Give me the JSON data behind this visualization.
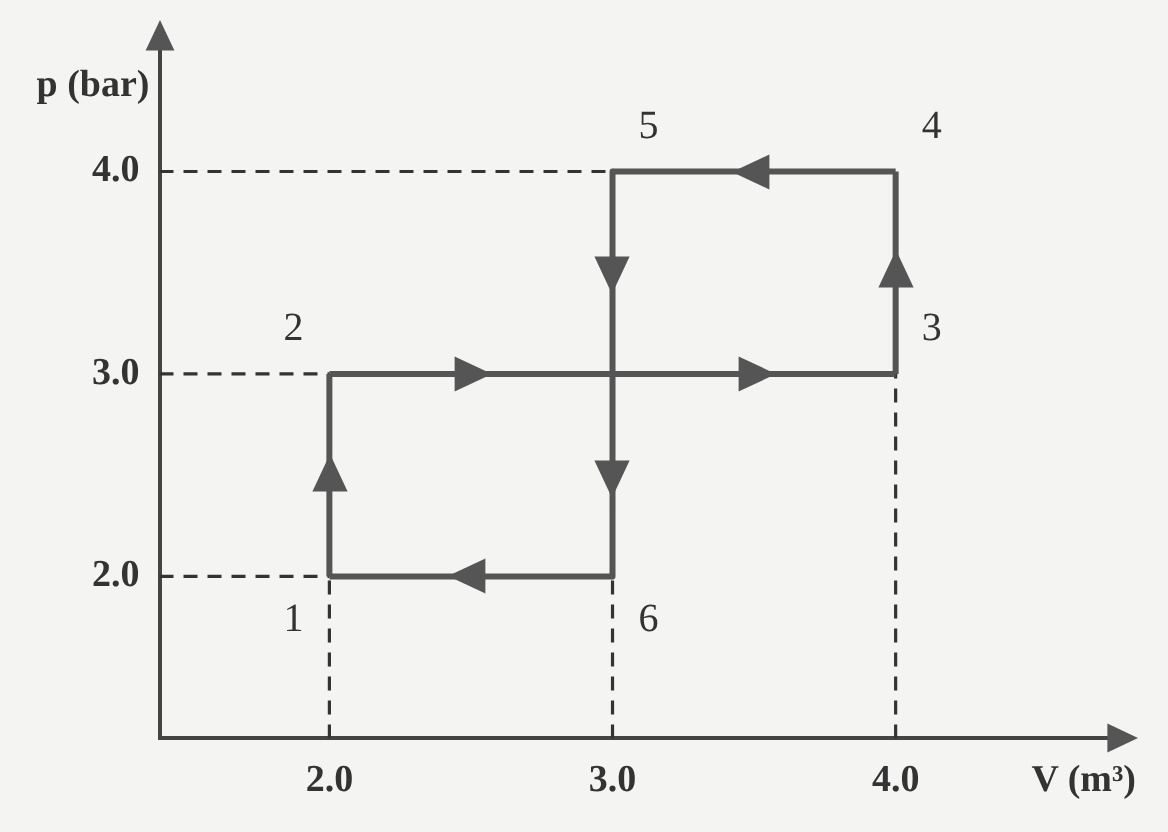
{
  "chart_data": {
    "type": "line",
    "xlabel": "V (m³)",
    "ylabel": "p (bar)",
    "xlim": [
      1.4,
      4.75
    ],
    "ylim": [
      1.2,
      4.6
    ],
    "xticks": [
      {
        "value": 2,
        "label": "2.0"
      },
      {
        "value": 3,
        "label": "3.0"
      },
      {
        "value": 4,
        "label": "4.0"
      }
    ],
    "yticks": [
      {
        "value": 2,
        "label": "2.0"
      },
      {
        "value": 3,
        "label": "3.0"
      },
      {
        "value": 4,
        "label": "4.0"
      }
    ],
    "grid": false,
    "legend": false,
    "marker": "none",
    "series": [
      {
        "x": [
          2.0,
          2.0
        ],
        "values": [
          2.0,
          3.0
        ],
        "color": "#555555",
        "line_style": "solid"
      },
      {
        "x": [
          2.0,
          4.0
        ],
        "values": [
          3.0,
          3.0
        ],
        "color": "#555555",
        "line_style": "solid"
      },
      {
        "x": [
          4.0,
          4.0
        ],
        "values": [
          3.0,
          4.0
        ],
        "color": "#555555",
        "line_style": "solid"
      },
      {
        "x": [
          4.0,
          3.0
        ],
        "values": [
          4.0,
          4.0
        ],
        "color": "#555555",
        "line_style": "solid"
      },
      {
        "x": [
          3.0,
          3.0
        ],
        "values": [
          4.0,
          2.0
        ],
        "color": "#555555",
        "line_style": "solid"
      },
      {
        "x": [
          3.0,
          2.0
        ],
        "values": [
          2.0,
          2.0
        ],
        "color": "#555555",
        "line_style": "solid"
      },
      {
        "x": [
          1.4,
          3.0
        ],
        "values": [
          4.0,
          4.0
        ],
        "color": "#333333",
        "line_style": "dashed"
      },
      {
        "x": [
          1.4,
          2.0
        ],
        "values": [
          3.0,
          3.0
        ],
        "color": "#333333",
        "line_style": "dashed"
      },
      {
        "x": [
          1.4,
          2.0
        ],
        "values": [
          2.0,
          2.0
        ],
        "color": "#333333",
        "line_style": "dashed"
      },
      {
        "x": [
          2.0,
          2.0
        ],
        "values": [
          1.2,
          2.0
        ],
        "color": "#333333",
        "line_style": "dashed"
      },
      {
        "x": [
          3.0,
          3.0
        ],
        "values": [
          1.2,
          2.0
        ],
        "color": "#333333",
        "line_style": "dashed"
      },
      {
        "x": [
          4.0,
          4.0
        ],
        "values": [
          1.2,
          3.0
        ],
        "color": "#333333",
        "line_style": "dashed"
      }
    ],
    "annotations": [
      {
        "text": "1",
        "x": 2.0,
        "y": 2.0
      },
      {
        "text": "2",
        "x": 2.0,
        "y": 3.0
      },
      {
        "text": "3",
        "x": 4.0,
        "y": 3.0
      },
      {
        "text": "4",
        "x": 4.0,
        "y": 4.0
      },
      {
        "text": "5",
        "x": 3.0,
        "y": 4.0
      },
      {
        "text": "6",
        "x": 3.0,
        "y": 2.0
      }
    ]
  }
}
